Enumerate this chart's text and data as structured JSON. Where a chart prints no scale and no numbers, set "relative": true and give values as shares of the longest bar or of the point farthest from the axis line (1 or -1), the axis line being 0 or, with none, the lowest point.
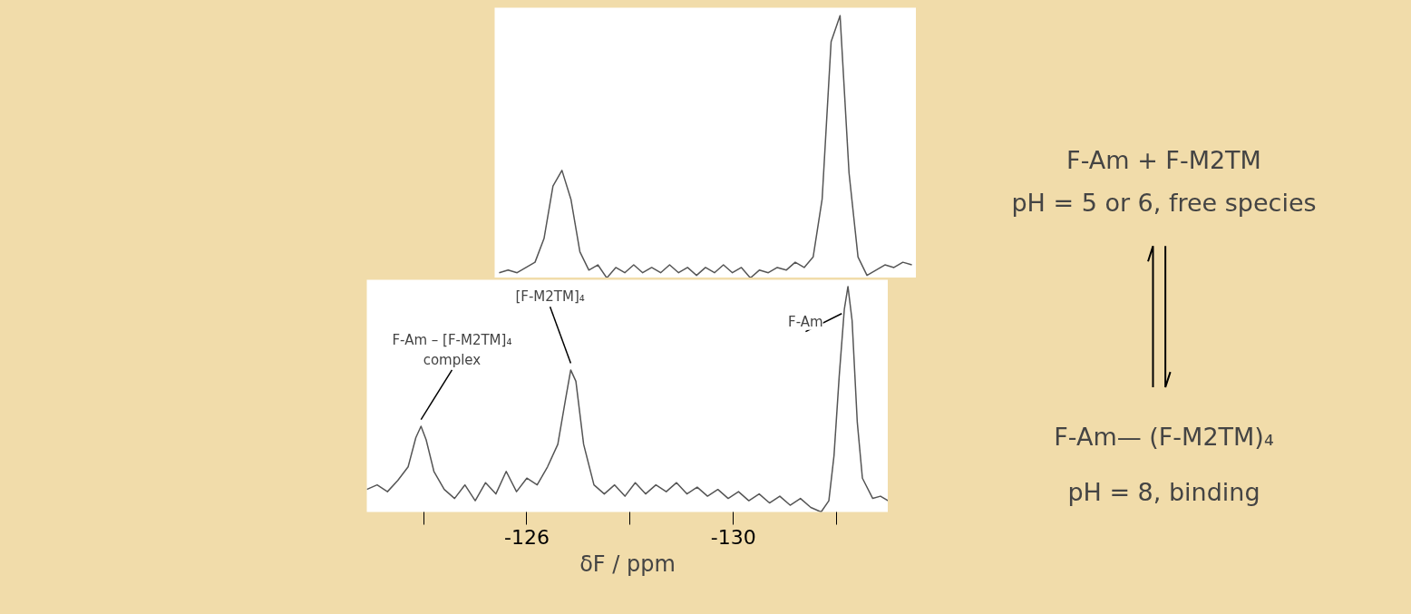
{
  "chart_data": [
    {
      "type": "line",
      "relative": true,
      "tick_labels": false,
      "categories": [
        null,
        null,
        null,
        null,
        null,
        null,
        null,
        null,
        null,
        null,
        null,
        null,
        null,
        null,
        null,
        null,
        null,
        null,
        null,
        null,
        null,
        null,
        null,
        null,
        null,
        null,
        null,
        null,
        null,
        null,
        null,
        null,
        null,
        null,
        null,
        null,
        null,
        null,
        null,
        null,
        null,
        null,
        null,
        null,
        null,
        null,
        null
      ],
      "series": [
        {
          "color": "#555555",
          "values": [
            0.02,
            0.03,
            0.02,
            0.04,
            0.06,
            0.15,
            0.35,
            0.41,
            0.3,
            0.1,
            0.03,
            0.05,
            0.0,
            0.04,
            0.02,
            0.05,
            0.02,
            0.04,
            0.02,
            0.05,
            0.02,
            0.04,
            0.01,
            0.04,
            0.02,
            0.05,
            0.02,
            0.04,
            0.0,
            0.03,
            0.02,
            0.04,
            0.03,
            0.06,
            0.04,
            0.08,
            0.3,
            0.9,
            1.0,
            0.4,
            0.08,
            0.01,
            0.03,
            0.05,
            0.04,
            0.06,
            0.05
          ]
        }
      ]
    },
    {
      "type": "line",
      "relative": true,
      "xlim": [
        -122.9,
        -133.0
      ],
      "tick_labels": "x",
      "xticks": [
        {
          "value": -124,
          "label": null
        },
        -126,
        {
          "value": -128,
          "label": null
        },
        -130,
        {
          "value": -132,
          "label": null
        }
      ],
      "xlabel": "δF / ppm",
      "series": [
        {
          "color": "#555555",
          "x": [
            -122.9,
            -123.1,
            -123.3,
            -123.5,
            -123.7,
            -123.85,
            -123.95,
            -124.05,
            -124.2,
            -124.4,
            -124.6,
            -124.8,
            -125.0,
            -125.2,
            -125.4,
            -125.6,
            -125.8,
            -126.0,
            -126.2,
            -126.4,
            -126.6,
            -126.75,
            -126.85,
            -126.95,
            -127.1,
            -127.3,
            -127.5,
            -127.7,
            -127.9,
            -128.1,
            -128.3,
            -128.5,
            -128.7,
            -128.9,
            -129.1,
            -129.3,
            -129.5,
            -129.7,
            -129.9,
            -130.1,
            -130.3,
            -130.5,
            -130.7,
            -130.9,
            -131.1,
            -131.3,
            -131.5,
            -131.7,
            -131.85,
            -131.95,
            -132.05,
            -132.15,
            -132.22,
            -132.3,
            -132.4,
            -132.5,
            -132.7,
            -132.85,
            -133.0
          ],
          "values": [
            0.1,
            0.12,
            0.09,
            0.14,
            0.2,
            0.33,
            0.38,
            0.32,
            0.18,
            0.1,
            0.06,
            0.12,
            0.05,
            0.13,
            0.08,
            0.18,
            0.09,
            0.15,
            0.12,
            0.2,
            0.3,
            0.5,
            0.63,
            0.58,
            0.3,
            0.12,
            0.08,
            0.12,
            0.07,
            0.13,
            0.08,
            0.12,
            0.09,
            0.13,
            0.08,
            0.11,
            0.07,
            0.1,
            0.06,
            0.09,
            0.05,
            0.08,
            0.04,
            0.07,
            0.03,
            0.06,
            0.02,
            0.0,
            0.05,
            0.25,
            0.6,
            0.9,
            1.0,
            0.85,
            0.4,
            0.15,
            0.06,
            0.07,
            0.05
          ]
        }
      ],
      "annotations": [
        {
          "text": "F-Am – [F-M2TM]₄\ncomplex",
          "x": -123.95,
          "y": 0.38
        },
        {
          "text": "[F-M2TM]₄",
          "x": -126.85,
          "y": 0.63
        },
        {
          "text": "F-Am",
          "x": -132.1,
          "y": 0.85
        }
      ]
    },
    {
      "type": "other",
      "annotations": [
        "F-Am + F-M2TM",
        "pH = 5 or 6, free species",
        "F-Am— (F-M2TM)₄",
        "pH = 8, binding"
      ]
    }
  ]
}
